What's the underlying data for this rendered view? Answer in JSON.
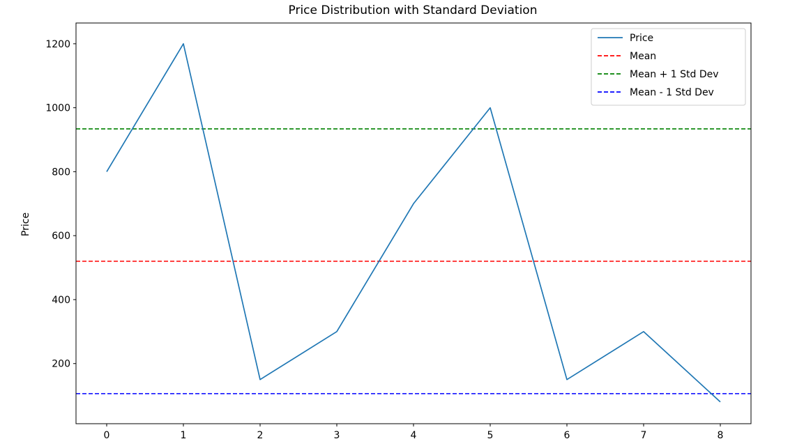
{
  "chart_data": {
    "type": "line",
    "title": "Price Distribution with Standard Deviation",
    "xlabel": "",
    "ylabel": "Price",
    "x": [
      0,
      1,
      2,
      3,
      4,
      5,
      6,
      7,
      8
    ],
    "xlim": [
      -0.4,
      8.4
    ],
    "ylim": [
      12,
      1265
    ],
    "xticks": [
      0,
      1,
      2,
      3,
      4,
      5,
      6,
      7,
      8
    ],
    "yticks": [
      200,
      400,
      600,
      800,
      1000,
      1200
    ],
    "grid": false,
    "legend_position": "top-right",
    "series": [
      {
        "name": "Price",
        "style": "solid",
        "color": "#1f77b4",
        "values": [
          800,
          1200,
          150,
          300,
          700,
          1000,
          150,
          300,
          80
        ]
      }
    ],
    "reference_lines": [
      {
        "name": "Mean",
        "value": 520,
        "style": "dashed",
        "color": "#ff0000"
      },
      {
        "name": "Mean + 1 Std Dev",
        "value": 934,
        "style": "dashed",
        "color": "#008000"
      },
      {
        "name": "Mean - 1 Std Dev",
        "value": 106,
        "style": "dashed",
        "color": "#0000ff"
      }
    ]
  }
}
